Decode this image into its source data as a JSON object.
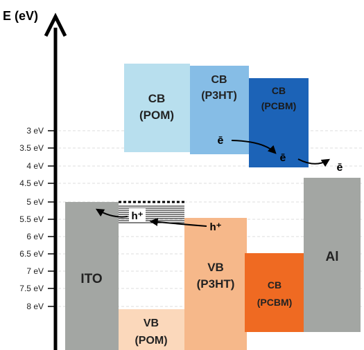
{
  "axis": {
    "title": "E (eV)",
    "ticks": [
      "3 eV",
      "3.5 eV",
      "4 eV",
      "4.5 eV",
      "5 eV",
      "5.5 eV",
      "6 eV",
      "6.5 eV",
      "7 eV",
      "7.5 eV",
      "8 eV"
    ]
  },
  "bands": {
    "cb_pom": {
      "line1": "CB",
      "line2": "(POM)",
      "color": "#b8dfee"
    },
    "cb_p3ht": {
      "line1": "CB",
      "line2": "(P3HT)",
      "color": "#86bde6"
    },
    "cb_pcbm": {
      "line1": "CB",
      "line2": "(PCBM)",
      "color": "#1c63b7"
    },
    "ito": {
      "label": "ITO",
      "color": "#a3a6a3"
    },
    "vb_pom": {
      "line1": "VB",
      "line2": "(POM)",
      "color": "#fbd8bb"
    },
    "vb_p3ht": {
      "line1": "VB",
      "line2": "(P3HT)",
      "color": "#f6b88a"
    },
    "vb_pcbm": {
      "line1": "CB",
      "line2": "(PCBM)",
      "color": "#ef6a22"
    },
    "al": {
      "label": "Al",
      "color": "#a3a6a3"
    }
  },
  "carriers": {
    "electron": "ē",
    "hole": "h⁺"
  }
}
